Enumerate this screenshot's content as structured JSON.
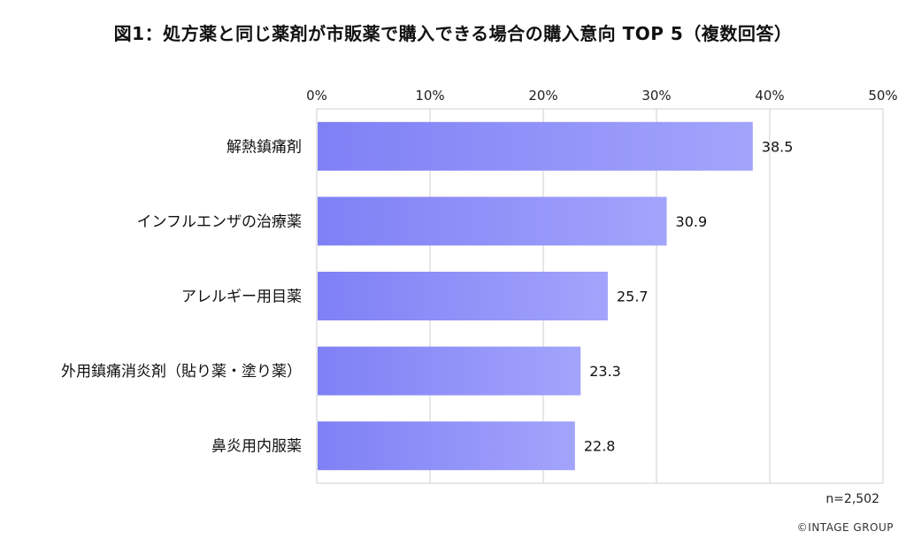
{
  "chart_data": {
    "type": "bar",
    "orientation": "horizontal",
    "title": "図1：処方薬と同じ薬剤が市販薬で購入できる場合の購入意向 TOP 5（複数回答）",
    "categories": [
      "解熱鎮痛剤",
      "インフルエンザの治療薬",
      "アレルギー用目薬",
      "外用鎮痛消炎剤（貼り薬・塗り薬）",
      "鼻炎用内服薬"
    ],
    "values": [
      38.5,
      30.9,
      25.7,
      23.3,
      22.8
    ],
    "value_labels": [
      "38.5",
      "30.9",
      "25.7",
      "23.3",
      "22.8"
    ],
    "xlim": [
      0,
      50
    ],
    "xticks": [
      0,
      10,
      20,
      30,
      40,
      50
    ],
    "xtick_labels": [
      "0%",
      "10%",
      "20%",
      "30%",
      "40%",
      "50%"
    ],
    "x_axis_position": "top",
    "grid": true,
    "bar_color_start": "#7f80f5",
    "bar_color_end": "#a3a4fb",
    "legend": "none"
  },
  "notes": {
    "sample_size": "n=2,502",
    "copyright": "©INTAGE GROUP"
  }
}
